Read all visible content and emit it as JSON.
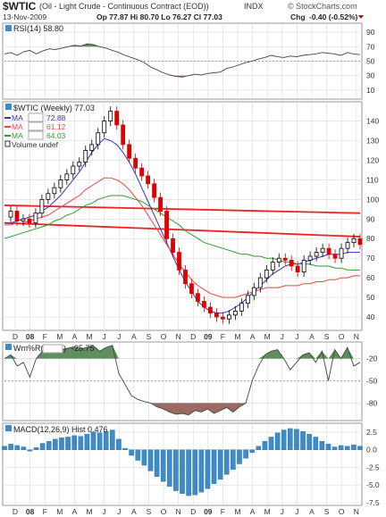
{
  "header": {
    "symbol": "$WTIC",
    "description": "(Oil - Light Crude - Continuous Contract (EOD))",
    "exchange": "INDX",
    "source": "© StockCharts.com",
    "date": "13-Nov-2009",
    "quote": "Op 77.87  Hi 80.70  Lo 76.27  Cl 77.03",
    "chg_label": "Chg",
    "chg_value": "-0.40 (-0.52%)"
  },
  "colors": {
    "price_up": "#000000",
    "price_down": "#dd0000",
    "ma_blue": "#3333bb",
    "ma_red": "#ee4444",
    "ma_green": "#339933",
    "trendline": "#ee2222",
    "osc_fill_green": "#5f8f5f",
    "osc_fill_brown": "#9a6a62",
    "macd_hist": "#3b8cc8",
    "grid": "#d8d8d8",
    "border": "#999999"
  },
  "panels": {
    "rsi": {
      "label": "RSI(14) 58.80",
      "ticks": [
        "90",
        "70",
        "50",
        "30",
        "10"
      ]
    },
    "price": {
      "title": "$WTIC (Weekly) 77.03",
      "legend": [
        {
          "name": "MA",
          "value": "72.88",
          "color": "#3333bb"
        },
        {
          "name": "MA",
          "value": "61.12",
          "color": "#ee4444"
        },
        {
          "name": "MA",
          "value": "64.03",
          "color": "#339933"
        }
      ],
      "volume_label": "Volume undef",
      "ticks": [
        "140",
        "130",
        "120",
        "110",
        "100",
        "90",
        "80",
        "70",
        "60",
        "50",
        "40"
      ]
    },
    "x_axis_top": {
      "labels": [
        "D",
        "08",
        "F",
        "M",
        "A",
        "M",
        "J",
        "J",
        "A",
        "S",
        "O",
        "N",
        "D",
        "09",
        "F",
        "M",
        "A",
        "M",
        "J",
        "J",
        "A",
        "S",
        "O",
        "N"
      ]
    },
    "wpr": {
      "label_prefix": "Wm%R(",
      "label_value": "-25.75",
      "ticks": [
        "-20",
        "-50",
        "-80"
      ]
    },
    "macd": {
      "label": "MACD(12,26,9) Hist 0.476",
      "ticks": [
        "2.5",
        "0.0",
        "-2.5",
        "-5.0",
        "-7.5"
      ]
    },
    "x_axis_bottom": {
      "labels": [
        "D",
        "08",
        "F",
        "M",
        "A",
        "M",
        "J",
        "J",
        "A",
        "S",
        "O",
        "N",
        "D",
        "09",
        "F",
        "M",
        "A",
        "M",
        "J",
        "J",
        "A",
        "S",
        "O",
        "N"
      ]
    }
  },
  "chart_data": [
    {
      "type": "line",
      "title": "RSI(14) 58.80",
      "ylim": [
        0,
        100
      ],
      "series": [
        {
          "name": "RSI(14)",
          "values": [
            60,
            62,
            58,
            63,
            65,
            60,
            64,
            67,
            66,
            68,
            70,
            72,
            71,
            74,
            73,
            70,
            68,
            65,
            62,
            58,
            55,
            52,
            48,
            42,
            38,
            34,
            31,
            29,
            28,
            30,
            32,
            31,
            33,
            34,
            35,
            40,
            42,
            45,
            48,
            50,
            53,
            55,
            58,
            56,
            55,
            57,
            56,
            58,
            59,
            60,
            62,
            61,
            60,
            58,
            62,
            60,
            59
          ]
        }
      ]
    },
    {
      "type": "line",
      "title": "$WTIC (Weekly) 77.03",
      "ylim": [
        35,
        148
      ],
      "series": [
        {
          "name": "Close",
          "values": [
            91,
            94,
            89,
            90,
            88,
            93,
            100,
            103,
            106,
            110,
            113,
            117,
            119,
            125,
            128,
            134,
            140,
            145,
            138,
            128,
            121,
            116,
            112,
            108,
            101,
            94,
            80,
            73,
            64,
            57,
            52,
            48,
            45,
            42,
            40,
            39,
            41,
            43,
            47,
            51,
            55,
            60,
            64,
            68,
            70,
            69,
            66,
            63,
            69,
            71,
            73,
            75,
            72,
            70,
            75,
            78,
            80,
            77
          ]
        },
        {
          "name": "MA",
          "values": [
            88,
            88,
            89,
            90,
            91,
            92,
            94,
            96,
            99,
            102,
            106,
            110,
            114,
            119,
            124,
            128,
            131,
            130,
            128,
            124,
            119,
            113,
            106,
            99,
            92,
            85,
            78,
            71,
            64,
            58,
            53,
            48,
            45,
            43,
            42,
            42,
            43,
            45,
            47,
            50,
            53,
            56,
            59,
            62,
            64,
            66,
            67,
            67,
            68,
            69,
            70,
            71,
            72,
            72,
            72,
            73,
            73,
            73
          ]
        },
        {
          "name": "MA",
          "values": [
            87,
            87,
            88,
            88,
            89,
            90,
            91,
            92,
            94,
            96,
            98,
            100,
            102,
            105,
            107,
            109,
            111,
            111,
            110,
            108,
            105,
            101,
            97,
            92,
            87,
            82,
            77,
            72,
            67,
            63,
            59,
            56,
            54,
            52,
            51,
            50,
            50,
            50,
            51,
            52,
            53,
            54,
            55,
            55,
            55,
            56,
            56,
            56,
            57,
            57,
            58,
            58,
            59,
            59,
            60,
            60,
            61,
            61
          ]
        },
        {
          "name": "MA",
          "values": [
            80,
            81,
            82,
            83,
            84,
            85,
            86,
            87,
            89,
            90,
            92,
            93,
            95,
            97,
            98,
            100,
            101,
            102,
            102,
            102,
            101,
            100,
            99,
            97,
            95,
            93,
            91,
            89,
            87,
            84,
            82,
            80,
            78,
            77,
            76,
            75,
            74,
            73,
            72,
            72,
            71,
            71,
            70,
            70,
            69,
            68,
            68,
            67,
            67,
            67,
            66,
            66,
            66,
            65,
            65,
            64,
            64,
            64
          ]
        }
      ]
    },
    {
      "type": "line",
      "title": "Wm%R",
      "ylim": [
        -100,
        0
      ],
      "series": [
        {
          "name": "Wm%R",
          "values": [
            -20,
            -15,
            -30,
            -25,
            -45,
            -20,
            -10,
            -12,
            -5,
            -8,
            -6,
            -4,
            -7,
            -5,
            -3,
            -10,
            -5,
            -2,
            -40,
            -55,
            -70,
            -75,
            -78,
            -80,
            -85,
            -88,
            -92,
            -95,
            -94,
            -96,
            -90,
            -92,
            -88,
            -94,
            -90,
            -86,
            -92,
            -85,
            -80,
            -50,
            -30,
            -15,
            -10,
            -8,
            -20,
            -35,
            -25,
            -15,
            -12,
            -25,
            -10,
            -50,
            -8,
            -20,
            -5,
            -30,
            -25
          ]
        }
      ]
    },
    {
      "type": "bar",
      "title": "MACD(12,26,9) Hist 0.476",
      "ylim": [
        -7.5,
        3.5
      ],
      "series": [
        {
          "name": "Hist",
          "values": [
            0.5,
            0.8,
            0.6,
            0.4,
            -0.2,
            0.3,
            0.9,
            1.2,
            1.5,
            1.7,
            1.8,
            2.0,
            1.9,
            2.2,
            2.5,
            2.4,
            2.6,
            2.8,
            1.5,
            0.2,
            -0.8,
            -1.5,
            -2.2,
            -3.0,
            -3.8,
            -4.5,
            -5.2,
            -5.8,
            -6.2,
            -6.5,
            -6.4,
            -6.0,
            -5.5,
            -4.8,
            -4.2,
            -3.5,
            -2.8,
            -2.0,
            -1.2,
            -0.4,
            0.5,
            1.2,
            1.8,
            2.4,
            2.8,
            3.0,
            2.9,
            2.6,
            2.2,
            1.8,
            1.2,
            0.8,
            0.4,
            0.6,
            0.5,
            0.7,
            0.5
          ]
        }
      ]
    }
  ]
}
